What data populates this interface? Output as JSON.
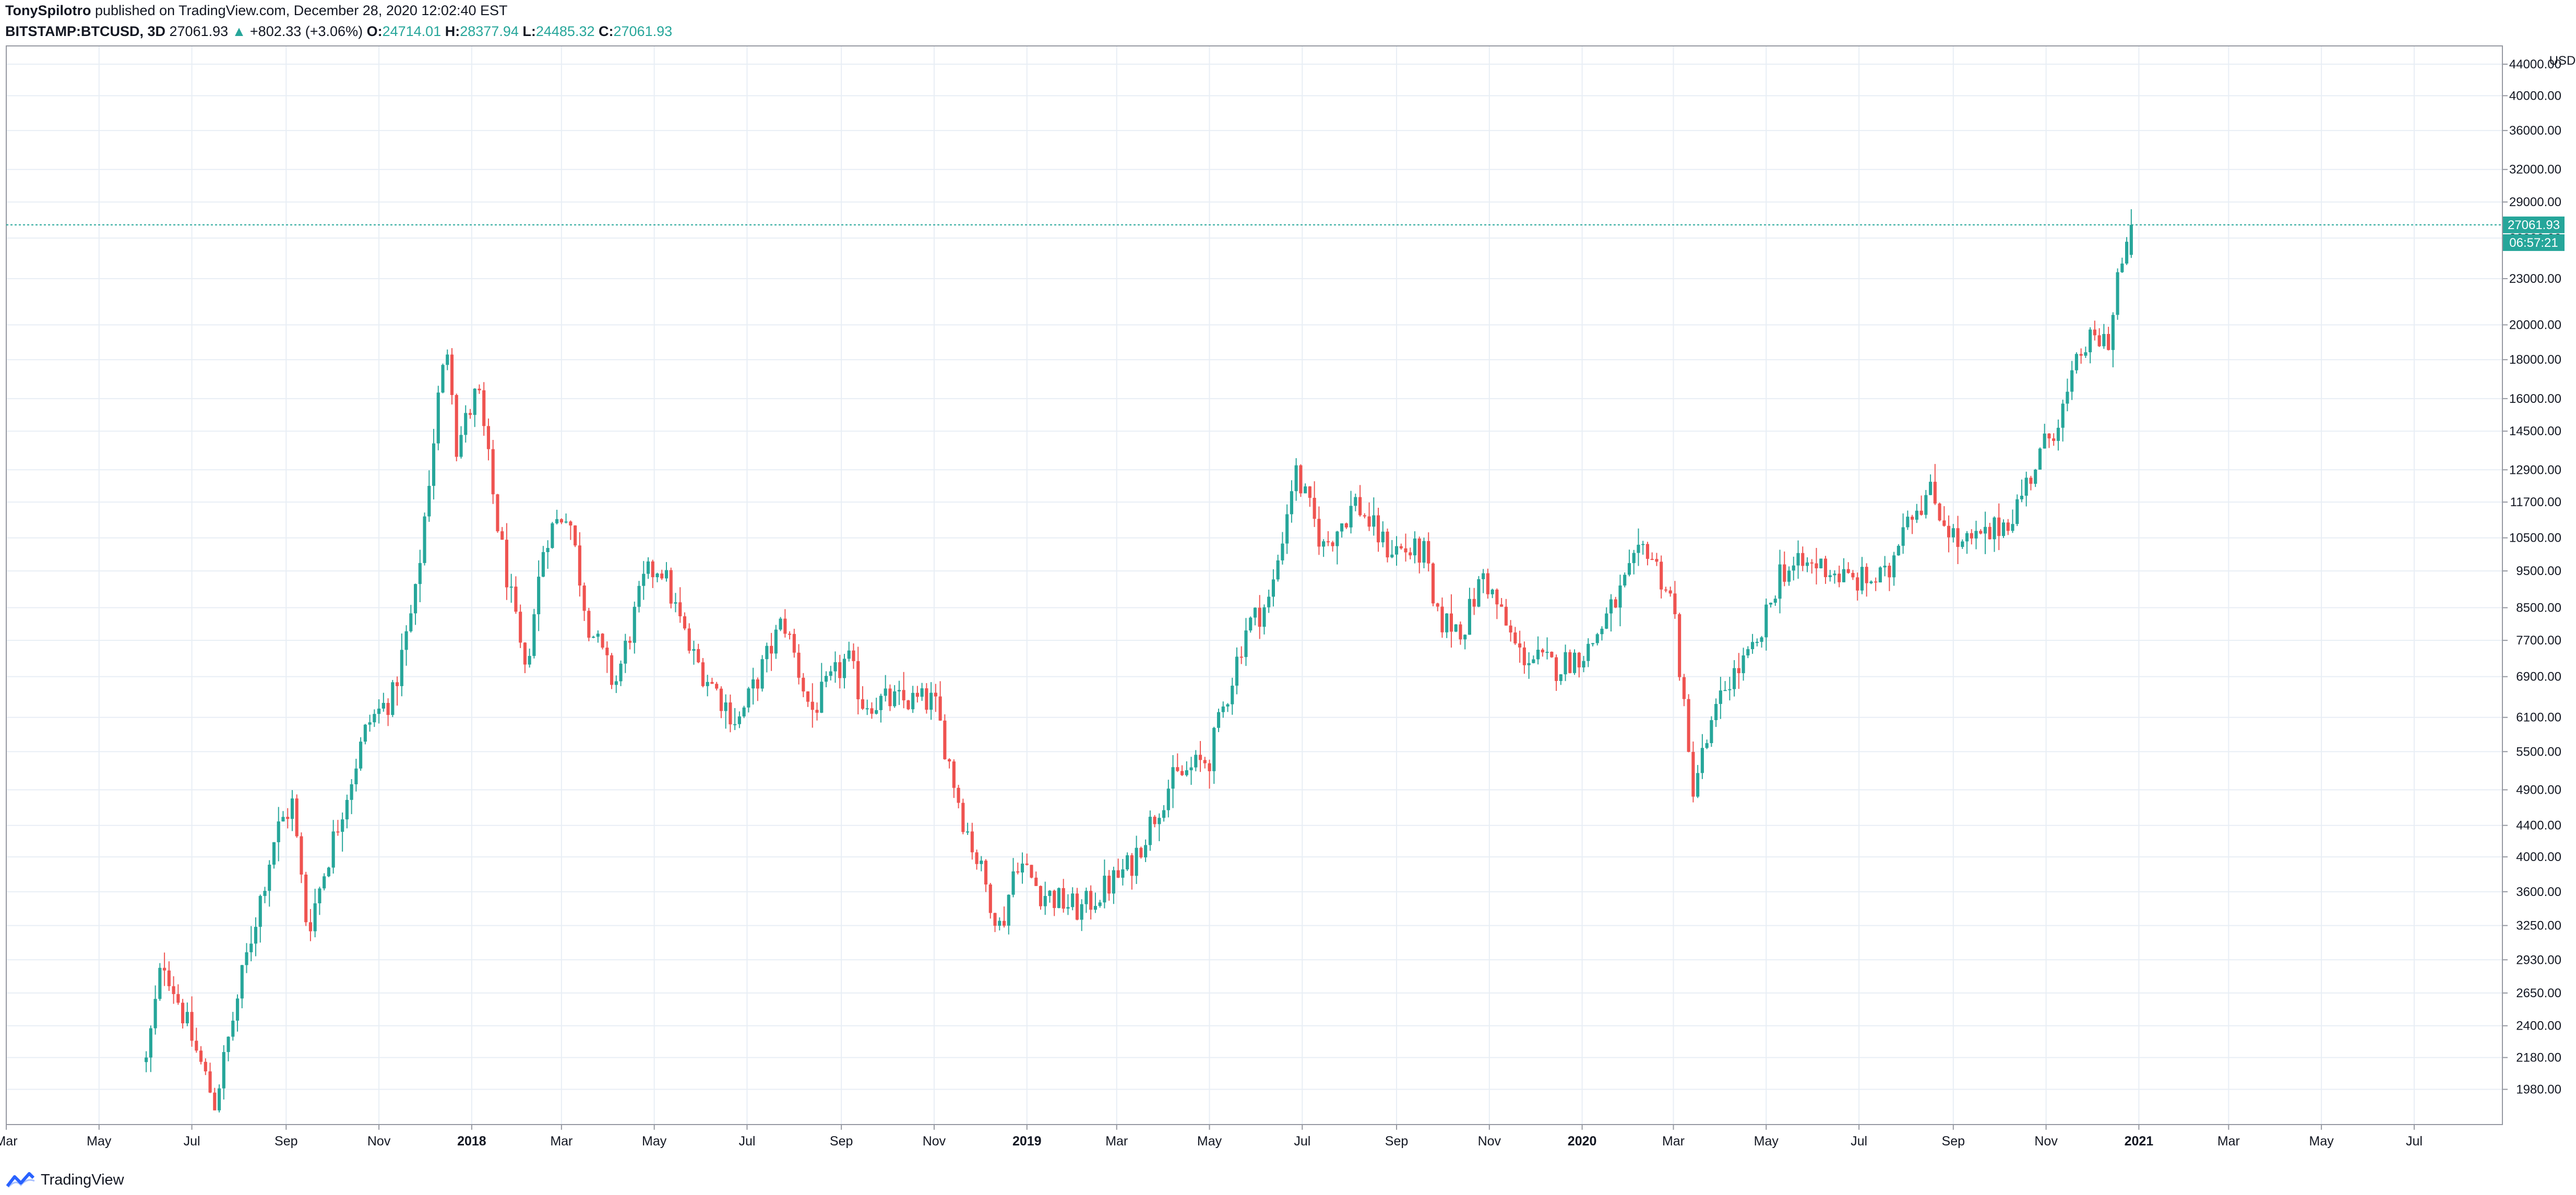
{
  "header": {
    "author": "TonySpilotro",
    "published": "published on TradingView.com, December 28, 2020 12:02:40 EST",
    "symbol": "BITSTAMP:BTCUSD, 3D",
    "last": "27061.93",
    "arrow": "▲",
    "change": "+802.33 (+3.06%)",
    "o_label": "O:",
    "o_val": "24714.01",
    "h_label": "H:",
    "h_val": "28377.94",
    "l_label": "L:",
    "l_val": "24485.32",
    "c_label": "C:",
    "c_val": "27061.93"
  },
  "footer": {
    "logo_text": "TradingView"
  },
  "colors": {
    "up": "#26a69a",
    "down": "#ef5350",
    "grid": "#e8eef5",
    "axis": "#131722",
    "price_line": "#26a69a"
  },
  "chart_data": {
    "type": "candlestick",
    "interval": "3D",
    "y_scale": "log",
    "y_axis_unit": "USD",
    "y_ticks": [
      1980,
      2180,
      2400,
      2650,
      2930,
      3250,
      3600,
      4000,
      4400,
      4900,
      5500,
      6100,
      6900,
      7700,
      8500,
      9500,
      10500,
      11700,
      12900,
      14500,
      16000,
      18000,
      20000,
      23000,
      26000,
      29000,
      32000,
      36000,
      40000,
      44000
    ],
    "y_tick_labels": [
      "1980.00",
      "2180.00",
      "2400.00",
      "2650.00",
      "2930.00",
      "3250.00",
      "3600.00",
      "4000.00",
      "4400.00",
      "4900.00",
      "5500.00",
      "6100.00",
      "6900.00",
      "7700.00",
      "8500.00",
      "9500.00",
      "10500.00",
      "11700.00",
      "12900.00",
      "14500.00",
      "16000.00",
      "18000.00",
      "20000.00",
      "23000.00",
      "26000.00",
      "29000.00",
      "32000.00",
      "36000.00",
      "40000.00",
      "44000.00"
    ],
    "y_range": [
      1780,
      46500
    ],
    "x_range": [
      "2017-03-01",
      "2021-08-28"
    ],
    "x_ticks": [
      {
        "date": "2017-03-01",
        "label": "Mar"
      },
      {
        "date": "2017-05-01",
        "label": "May"
      },
      {
        "date": "2017-07-01",
        "label": "Jul"
      },
      {
        "date": "2017-09-01",
        "label": "Sep"
      },
      {
        "date": "2017-11-01",
        "label": "Nov"
      },
      {
        "date": "2018-01-01",
        "label": "2018"
      },
      {
        "date": "2018-03-01",
        "label": "Mar"
      },
      {
        "date": "2018-05-01",
        "label": "May"
      },
      {
        "date": "2018-07-01",
        "label": "Jul"
      },
      {
        "date": "2018-09-01",
        "label": "Sep"
      },
      {
        "date": "2018-11-01",
        "label": "Nov"
      },
      {
        "date": "2019-01-01",
        "label": "2019"
      },
      {
        "date": "2019-03-01",
        "label": "Mar"
      },
      {
        "date": "2019-05-01",
        "label": "May"
      },
      {
        "date": "2019-07-01",
        "label": "Jul"
      },
      {
        "date": "2019-09-01",
        "label": "Sep"
      },
      {
        "date": "2019-11-01",
        "label": "Nov"
      },
      {
        "date": "2020-01-01",
        "label": "2020"
      },
      {
        "date": "2020-03-01",
        "label": "Mar"
      },
      {
        "date": "2020-05-01",
        "label": "May"
      },
      {
        "date": "2020-07-01",
        "label": "Jul"
      },
      {
        "date": "2020-09-01",
        "label": "Sep"
      },
      {
        "date": "2020-11-01",
        "label": "Nov"
      },
      {
        "date": "2021-01-01",
        "label": "2021"
      },
      {
        "date": "2021-03-01",
        "label": "Mar"
      },
      {
        "date": "2021-05-01",
        "label": "May"
      },
      {
        "date": "2021-07-01",
        "label": "Jul"
      }
    ],
    "last_price": 27061.93,
    "last_price_label": "27061.93",
    "countdown_label": "06:57:21",
    "key_points": [
      {
        "date": "2017-06-01",
        "close": 2150
      },
      {
        "date": "2017-06-12",
        "close": 2950
      },
      {
        "date": "2017-07-16",
        "close": 1900
      },
      {
        "date": "2017-08-05",
        "close": 2900
      },
      {
        "date": "2017-08-25",
        "close": 4300
      },
      {
        "date": "2017-09-05",
        "close": 4700
      },
      {
        "date": "2017-09-15",
        "close": 3200
      },
      {
        "date": "2017-10-10",
        "close": 4800
      },
      {
        "date": "2017-10-25",
        "close": 6000
      },
      {
        "date": "2017-11-10",
        "close": 6500
      },
      {
        "date": "2017-11-25",
        "close": 8800
      },
      {
        "date": "2017-12-10",
        "close": 16000
      },
      {
        "date": "2017-12-17",
        "close": 19200
      },
      {
        "date": "2017-12-22",
        "close": 13800
      },
      {
        "date": "2018-01-05",
        "close": 16500
      },
      {
        "date": "2018-01-17",
        "close": 11200
      },
      {
        "date": "2018-02-05",
        "close": 6900
      },
      {
        "date": "2018-02-18",
        "close": 10500
      },
      {
        "date": "2018-03-05",
        "close": 11500
      },
      {
        "date": "2018-03-18",
        "close": 8200
      },
      {
        "date": "2018-04-05",
        "close": 6700
      },
      {
        "date": "2018-04-25",
        "close": 9300
      },
      {
        "date": "2018-05-05",
        "close": 9700
      },
      {
        "date": "2018-05-25",
        "close": 7400
      },
      {
        "date": "2018-06-25",
        "close": 6000
      },
      {
        "date": "2018-07-25",
        "close": 8200
      },
      {
        "date": "2018-08-12",
        "close": 6200
      },
      {
        "date": "2018-09-05",
        "close": 7300
      },
      {
        "date": "2018-09-15",
        "close": 6400
      },
      {
        "date": "2018-11-01",
        "close": 6400
      },
      {
        "date": "2018-11-20",
        "close": 4500
      },
      {
        "date": "2018-12-15",
        "close": 3200
      },
      {
        "date": "2018-12-25",
        "close": 4000
      },
      {
        "date": "2019-01-10",
        "close": 3600
      },
      {
        "date": "2019-02-05",
        "close": 3400
      },
      {
        "date": "2019-03-10",
        "close": 3900
      },
      {
        "date": "2019-04-05",
        "close": 5000
      },
      {
        "date": "2019-05-01",
        "close": 5400
      },
      {
        "date": "2019-05-25",
        "close": 8000
      },
      {
        "date": "2019-06-10",
        "close": 8700
      },
      {
        "date": "2019-06-26",
        "close": 12900
      },
      {
        "date": "2019-07-15",
        "close": 10200
      },
      {
        "date": "2019-08-05",
        "close": 11700
      },
      {
        "date": "2019-08-25",
        "close": 10200
      },
      {
        "date": "2019-09-20",
        "close": 10000
      },
      {
        "date": "2019-09-26",
        "close": 8200
      },
      {
        "date": "2019-10-15",
        "close": 8000
      },
      {
        "date": "2019-10-28",
        "close": 9400
      },
      {
        "date": "2019-11-20",
        "close": 7400
      },
      {
        "date": "2019-12-15",
        "close": 7100
      },
      {
        "date": "2020-01-05",
        "close": 7500
      },
      {
        "date": "2020-01-25",
        "close": 8800
      },
      {
        "date": "2020-02-12",
        "close": 10300
      },
      {
        "date": "2020-03-01",
        "close": 8600
      },
      {
        "date": "2020-03-13",
        "close": 4900
      },
      {
        "date": "2020-04-05",
        "close": 6800
      },
      {
        "date": "2020-04-25",
        "close": 7500
      },
      {
        "date": "2020-05-10",
        "close": 9500
      },
      {
        "date": "2020-06-05",
        "close": 9700
      },
      {
        "date": "2020-06-25",
        "close": 9200
      },
      {
        "date": "2020-07-20",
        "close": 9300
      },
      {
        "date": "2020-07-30",
        "close": 11200
      },
      {
        "date": "2020-08-17",
        "close": 12000
      },
      {
        "date": "2020-09-05",
        "close": 10200
      },
      {
        "date": "2020-09-25",
        "close": 10600
      },
      {
        "date": "2020-10-10",
        "close": 11300
      },
      {
        "date": "2020-10-25",
        "close": 13100
      },
      {
        "date": "2020-11-15",
        "close": 16000
      },
      {
        "date": "2020-11-25",
        "close": 18700
      },
      {
        "date": "2020-12-05",
        "close": 19100
      },
      {
        "date": "2020-12-13",
        "close": 19200
      },
      {
        "date": "2020-12-18",
        "close": 23200
      },
      {
        "date": "2020-12-24",
        "close": 24700
      },
      {
        "date": "2020-12-27",
        "close": 27061.93
      }
    ]
  }
}
